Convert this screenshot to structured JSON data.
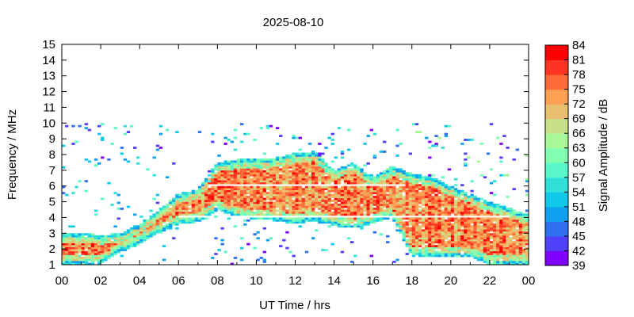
{
  "chart_data": {
    "type": "heatmap",
    "title": "2025-08-10",
    "xlabel": "UT Time / hrs",
    "ylabel": "Frequency / MHz",
    "colorbar_label": "Signal Amplitude / dB",
    "xlim": [
      0,
      24
    ],
    "ylim": [
      1,
      15
    ],
    "x_ticks": [
      "00",
      "02",
      "04",
      "06",
      "08",
      "10",
      "12",
      "14",
      "16",
      "18",
      "20",
      "22",
      "00"
    ],
    "y_ticks": [
      "1",
      "2",
      "3",
      "4",
      "5",
      "6",
      "7",
      "8",
      "9",
      "10",
      "11",
      "12",
      "13",
      "14",
      "15"
    ],
    "colorbar_range": [
      39,
      84
    ],
    "colorbar_ticks": [
      "39",
      "42",
      "45",
      "48",
      "51",
      "54",
      "57",
      "60",
      "63",
      "66",
      "69",
      "72",
      "75",
      "78",
      "81",
      "84"
    ],
    "colorbar_colors": [
      "#8000ff",
      "#5040f8",
      "#3070f0",
      "#10a0f0",
      "#10c8e8",
      "#30e0d8",
      "#58f8c8",
      "#80ffb0",
      "#a8f898",
      "#c8e088",
      "#e8c070",
      "#ffa052",
      "#ff6a3a",
      "#ff3322",
      "#ff0000"
    ],
    "envelope_hours": [
      0,
      1,
      2,
      3,
      4,
      5,
      6,
      7,
      8,
      9,
      10,
      11,
      12,
      13,
      14,
      15,
      16,
      17,
      18,
      19,
      20,
      21,
      22,
      23,
      24
    ],
    "upper_freq_mhz": [
      3.0,
      3.0,
      2.9,
      3.0,
      3.6,
      4.5,
      5.5,
      5.8,
      7.5,
      7.7,
      7.7,
      7.8,
      8.1,
      8.2,
      7.0,
      7.5,
      6.5,
      7.3,
      6.8,
      6.6,
      6.0,
      5.5,
      5.0,
      4.6,
      4.2
    ],
    "lower_freq_mhz": [
      1.0,
      1.0,
      1.0,
      1.8,
      2.3,
      3.0,
      3.6,
      3.7,
      4.5,
      4.0,
      3.9,
      3.8,
      3.6,
      3.8,
      3.5,
      3.3,
      3.6,
      4.0,
      1.5,
      1.5,
      1.5,
      1.5,
      1.0,
      1.0,
      1.0
    ],
    "peak_amplitude_db": 84,
    "background_noise_band_mhz": [
      1,
      10
    ]
  }
}
